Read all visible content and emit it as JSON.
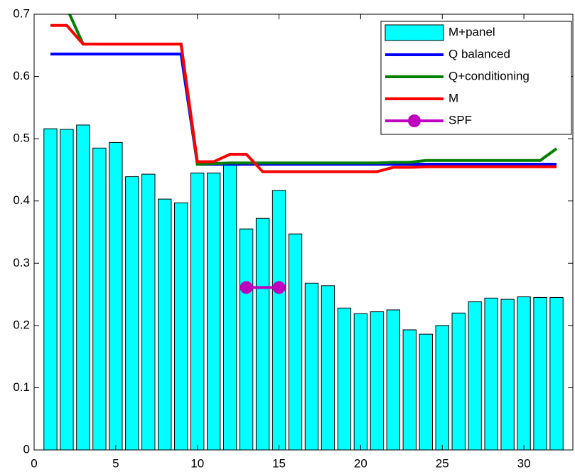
{
  "chart_data": {
    "type": "bar",
    "x": [
      1,
      2,
      3,
      4,
      5,
      6,
      7,
      8,
      9,
      10,
      11,
      12,
      13,
      14,
      15,
      16,
      17,
      18,
      19,
      20,
      21,
      22,
      23,
      24,
      25,
      26,
      27,
      28,
      29,
      30,
      31,
      32
    ],
    "series": [
      {
        "name": "M+panel",
        "type": "bar",
        "color": "#00ffff",
        "values": [
          0.516,
          0.515,
          0.522,
          0.485,
          0.494,
          0.439,
          0.443,
          0.403,
          0.397,
          0.445,
          0.445,
          0.46,
          0.355,
          0.372,
          0.417,
          0.347,
          0.268,
          0.264,
          0.228,
          0.219,
          0.222,
          0.225,
          0.193,
          0.186,
          0.2,
          0.22,
          0.238,
          0.244,
          0.242,
          0.246,
          0.245,
          0.245
        ]
      },
      {
        "name": "Q balanced",
        "type": "line",
        "color": "#0000ff",
        "values": [
          0.636,
          0.636,
          0.636,
          0.636,
          0.636,
          0.636,
          0.636,
          0.636,
          0.636,
          0.459,
          0.459,
          0.459,
          0.459,
          0.459,
          0.459,
          0.459,
          0.459,
          0.459,
          0.459,
          0.459,
          0.459,
          0.459,
          0.459,
          0.459,
          0.459,
          0.459,
          0.459,
          0.459,
          0.459,
          0.459,
          0.459,
          0.459
        ]
      },
      {
        "name": "Q+conditioning",
        "type": "line",
        "color": "#008000",
        "values": [
          0.76,
          0.71,
          0.652,
          0.652,
          0.652,
          0.652,
          0.652,
          0.652,
          0.652,
          0.459,
          0.46,
          0.461,
          0.461,
          0.461,
          0.461,
          0.461,
          0.461,
          0.461,
          0.461,
          0.461,
          0.461,
          0.462,
          0.462,
          0.465,
          0.465,
          0.465,
          0.465,
          0.465,
          0.465,
          0.465,
          0.465,
          0.484
        ]
      },
      {
        "name": "M",
        "type": "line",
        "color": "#ff0000",
        "values": [
          0.682,
          0.682,
          0.652,
          0.652,
          0.652,
          0.652,
          0.652,
          0.652,
          0.652,
          0.463,
          0.463,
          0.475,
          0.475,
          0.447,
          0.447,
          0.447,
          0.447,
          0.447,
          0.447,
          0.447,
          0.447,
          0.454,
          0.454,
          0.455,
          0.455,
          0.455,
          0.455,
          0.455,
          0.455,
          0.455,
          0.455,
          0.455
        ]
      },
      {
        "name": "SPF",
        "type": "line",
        "marker": "circle",
        "color": "#bf00bf",
        "x": [
          13,
          15
        ],
        "values": [
          0.261,
          0.261
        ]
      }
    ],
    "xlim": [
      0,
      33
    ],
    "xticks": [
      0,
      5,
      10,
      15,
      20,
      25,
      30
    ],
    "ylim": [
      0,
      0.7
    ],
    "yticks": [
      0,
      0.1,
      0.2,
      0.3,
      0.4,
      0.5,
      0.6,
      0.7
    ],
    "legend": "top-right"
  }
}
